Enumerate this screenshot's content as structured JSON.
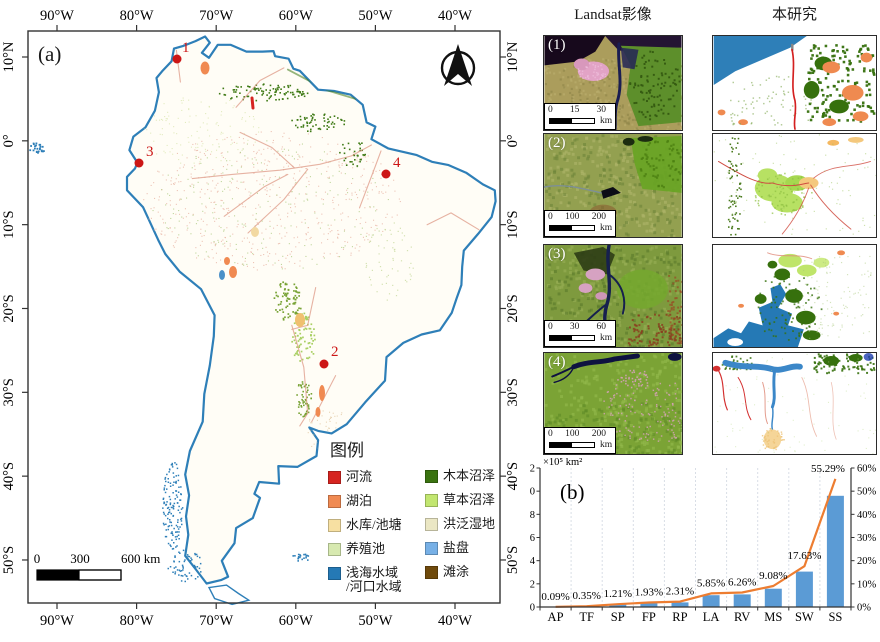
{
  "figure": {
    "panel_a_label": "(a)",
    "panel_b_label": "(b)",
    "map": {
      "lon_ticks": [
        "90°W",
        "80°W",
        "70°W",
        "60°W",
        "50°W",
        "40°W"
      ],
      "lat_ticks": [
        "10°N",
        "0°",
        "10°S",
        "20°S",
        "30°S",
        "40°S",
        "50°S"
      ],
      "markers": [
        "1",
        "2",
        "3",
        "4"
      ],
      "scalebar": {
        "start": "0",
        "mid": "300",
        "end": "600 km"
      },
      "legend": {
        "title": "图例",
        "items": [
          {
            "label": "河流",
            "color": "#d62420"
          },
          {
            "label": "湖泊",
            "color": "#f08a52"
          },
          {
            "label": "水库/池塘",
            "color": "#f7e0a2"
          },
          {
            "label": "养殖池",
            "color": "#d7e9b0"
          },
          {
            "label": "浅海水域\n/河口水域",
            "color": "#2579b5"
          },
          {
            "label": "木本沼泽",
            "color": "#3a7310"
          },
          {
            "label": "草本沼泽",
            "color": "#c2e670"
          },
          {
            "label": "洪泛湿地",
            "color": "#ebe7c4"
          },
          {
            "label": "盐盘",
            "color": "#77b0e6"
          },
          {
            "label": "滩涂",
            "color": "#6f4a0c"
          }
        ]
      }
    },
    "comparison": {
      "col1_title": "Landsat影像",
      "col2_title": "本研究",
      "rows": [
        {
          "number": "(1)",
          "scale_ticks": [
            "0",
            "15",
            "30"
          ],
          "unit": "km"
        },
        {
          "number": "(2)",
          "scale_ticks": [
            "0",
            "100",
            "200"
          ],
          "unit": "km"
        },
        {
          "number": "(3)",
          "scale_ticks": [
            "0",
            "30",
            "60"
          ],
          "unit": "km"
        },
        {
          "number": "(4)",
          "scale_ticks": [
            "0",
            "100",
            "200"
          ],
          "unit": "km"
        }
      ]
    }
  },
  "chart_data": {
    "type": "bar",
    "categories": [
      "AP",
      "TF",
      "SP",
      "FP",
      "RP",
      "LA",
      "RV",
      "MS",
      "SW",
      "SS"
    ],
    "series": [
      {
        "name": "bar_area",
        "type": "bar",
        "axis": "left",
        "color": "#5b9bd5",
        "values": [
          0.02,
          0.06,
          0.21,
          0.33,
          0.4,
          1.02,
          1.09,
          1.58,
          3.06,
          9.6
        ]
      },
      {
        "name": "line_percentage",
        "type": "line",
        "axis": "right",
        "color": "#ed7d31",
        "values": [
          0.09,
          0.35,
          1.21,
          1.93,
          2.31,
          5.85,
          6.26,
          9.08,
          17.63,
          55.29
        ]
      }
    ],
    "point_labels": [
      "0.09%",
      "0.35%",
      "1.21%",
      "1.93%",
      "2.31%",
      "5.85%",
      "6.26%",
      "9.08%",
      "17.63%",
      "55.29%"
    ],
    "ylabel_left": "×10⁵ km²",
    "yticks_left": [
      "0",
      "2",
      "4",
      "6",
      "8",
      "10",
      "12"
    ],
    "ylim_left": [
      0,
      12
    ],
    "yticks_right": [
      "0%",
      "10%",
      "20%",
      "30%",
      "40%",
      "50%",
      "60%"
    ],
    "ylim_right": [
      0,
      60
    ],
    "grid": "dashed-vertical",
    "legend_position": "none"
  }
}
